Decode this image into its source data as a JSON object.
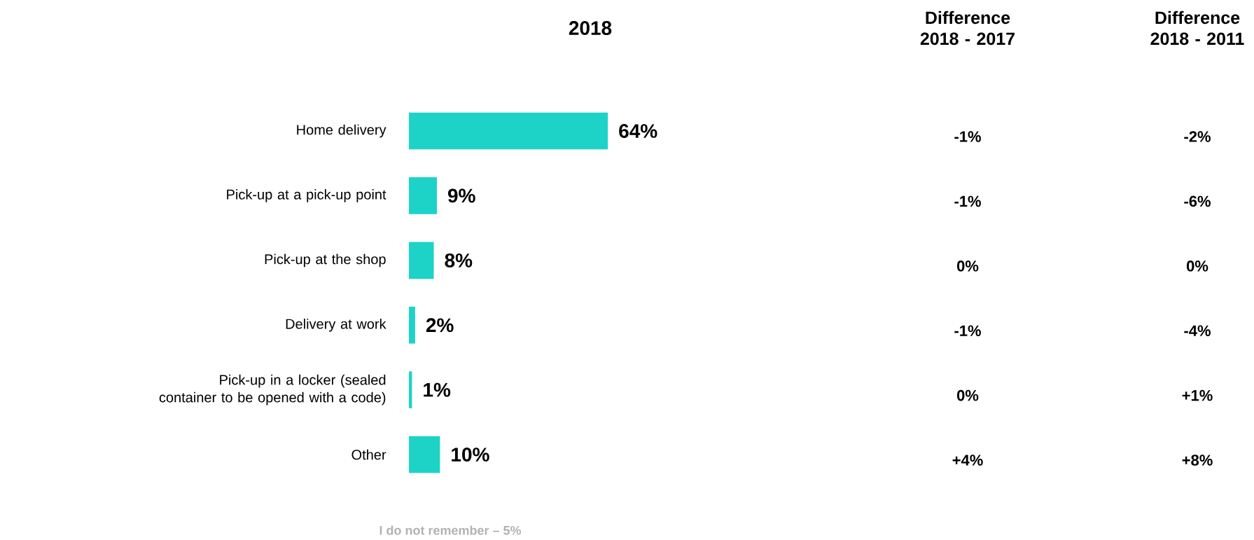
{
  "chart_data": [
    {
      "type": "bar",
      "title": "2018",
      "orientation": "horizontal",
      "categories": [
        "Home delivery",
        "Pick-up at a pick-up point",
        "Pick-up at the shop",
        "Delivery at work",
        "Pick-up in a locker (sealed container to be opened with a code)",
        "Other"
      ],
      "values": [
        64,
        9,
        8,
        2,
        1,
        10
      ],
      "value_labels": [
        "64%",
        "9%",
        "8%",
        "2%",
        "1%",
        "10%"
      ],
      "color": "#1dd3c8",
      "tick_labels": "y",
      "annotations": [
        "I do not remember – 5%"
      ]
    },
    {
      "type": "other",
      "title": "Difference 2018 - 2017",
      "annotations": [
        "-1%",
        "-1%",
        "0%",
        "-1%",
        "0%",
        "+4%"
      ]
    },
    {
      "type": "other",
      "title": "Difference 2018 - 2011",
      "annotations": [
        "-2%",
        "-6%",
        "0%",
        "-4%",
        "+1%",
        "+8%"
      ]
    }
  ]
}
